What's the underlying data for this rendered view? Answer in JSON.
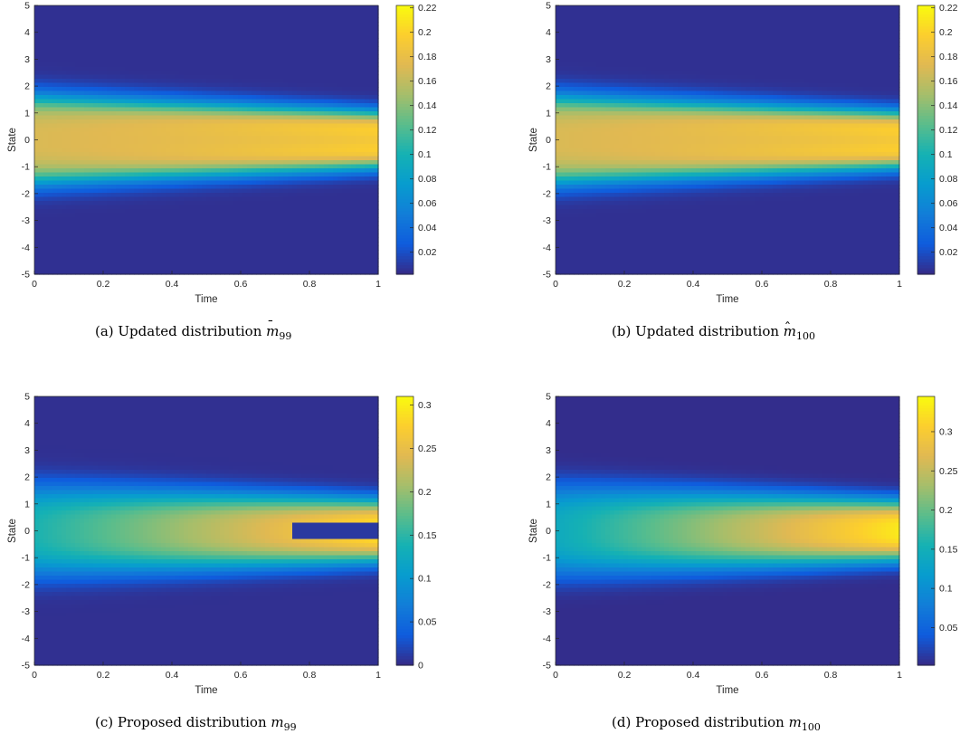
{
  "figure": {
    "panels": [
      {
        "id": "a",
        "caption_prefix": "(a)  Updated distribution",
        "symbol": "m",
        "symbol_mark": "bar",
        "subscript": "99"
      },
      {
        "id": "b",
        "caption_prefix": "(b)  Updated distribution",
        "symbol": "m",
        "symbol_mark": "hat",
        "subscript": "100"
      },
      {
        "id": "c",
        "caption_prefix": "(c)  Proposed distribution",
        "symbol": "m",
        "symbol_mark": "none",
        "subscript": "99"
      },
      {
        "id": "d",
        "caption_prefix": "(d)  Proposed distribution",
        "symbol": "m",
        "symbol_mark": "none",
        "subscript": "100"
      }
    ]
  },
  "chart_data": [
    {
      "type": "heatmap",
      "title": "",
      "xlabel": "Time",
      "ylabel": "State",
      "xlim": [
        0,
        1
      ],
      "ylim": [
        -5,
        5
      ],
      "xticks": [
        "0",
        "0.2",
        "0.4",
        "0.6",
        "0.8",
        "1"
      ],
      "yticks": [
        "-5",
        "-4",
        "-3",
        "-2",
        "-1",
        "0",
        "1",
        "2",
        "3",
        "4",
        "5"
      ],
      "colormap": "parula",
      "colorbar": {
        "range": [
          0.002,
          0.222
        ],
        "ticks": [
          0.02,
          0.04,
          0.06,
          0.08,
          0.1,
          0.12,
          0.14,
          0.16,
          0.18,
          0.2,
          0.22
        ],
        "tick_labels": [
          "0.02",
          "0.04",
          "0.06",
          "0.08",
          "0.1",
          "0.12",
          "0.14",
          "0.16",
          "0.18",
          "0.2",
          "0.22"
        ]
      },
      "field": {
        "center_value_t0": 0.17,
        "center_value_t1": 0.185,
        "band_value_t0": 0.2,
        "band_value_t1": 0.22,
        "band_offset_t0": 1.4,
        "band_offset_t1": 0.8,
        "spread_t0": 1.6,
        "spread_t1": 1.05,
        "edge_value": 0.005
      }
    },
    {
      "type": "heatmap",
      "title": "",
      "xlabel": "Time",
      "ylabel": "State",
      "xlim": [
        0,
        1
      ],
      "ylim": [
        -5,
        5
      ],
      "xticks": [
        "0",
        "0.2",
        "0.4",
        "0.6",
        "0.8",
        "1"
      ],
      "yticks": [
        "-5",
        "-4",
        "-3",
        "-2",
        "-1",
        "0",
        "1",
        "2",
        "3",
        "4",
        "5"
      ],
      "colormap": "parula",
      "colorbar": {
        "range": [
          0.002,
          0.222
        ],
        "ticks": [
          0.02,
          0.04,
          0.06,
          0.08,
          0.1,
          0.12,
          0.14,
          0.16,
          0.18,
          0.2,
          0.22
        ],
        "tick_labels": [
          "0.02",
          "0.04",
          "0.06",
          "0.08",
          "0.1",
          "0.12",
          "0.14",
          "0.16",
          "0.18",
          "0.2",
          "0.22"
        ]
      },
      "field": {
        "center_value_t0": 0.17,
        "center_value_t1": 0.185,
        "band_value_t0": 0.2,
        "band_value_t1": 0.22,
        "band_offset_t0": 1.4,
        "band_offset_t1": 0.8,
        "spread_t0": 1.6,
        "spread_t1": 1.05,
        "edge_value": 0.005
      }
    },
    {
      "type": "heatmap",
      "title": "",
      "xlabel": "Time",
      "ylabel": "State",
      "xlim": [
        0,
        1
      ],
      "ylim": [
        -5,
        5
      ],
      "xticks": [
        "0",
        "0.2",
        "0.4",
        "0.6",
        "0.8",
        "1"
      ],
      "yticks": [
        "-5",
        "-4",
        "-3",
        "-2",
        "-1",
        "0",
        "1",
        "2",
        "3",
        "4",
        "5"
      ],
      "colormap": "parula",
      "colorbar": {
        "range": [
          0,
          0.31
        ],
        "ticks": [
          0,
          0.05,
          0.1,
          0.15,
          0.2,
          0.25,
          0.3
        ],
        "tick_labels": [
          "0",
          "0.05",
          "0.1",
          "0.15",
          "0.2",
          "0.25",
          "0.3"
        ]
      },
      "field": {
        "center_value_t0": 0.14,
        "center_value_t1": 0.29,
        "spread_t0": 1.7,
        "spread_t1": 1.15,
        "edge_value": 0.004,
        "collapse_after_t": 0.75,
        "collapse_halfwidth": 0.35,
        "collapse_value": 0.01
      }
    },
    {
      "type": "heatmap",
      "title": "",
      "xlabel": "Time",
      "ylabel": "State",
      "xlim": [
        0,
        1
      ],
      "ylim": [
        -5,
        5
      ],
      "xticks": [
        "0",
        "0.2",
        "0.4",
        "0.6",
        "0.8",
        "1"
      ],
      "yticks": [
        "-5",
        "-4",
        "-3",
        "-2",
        "-1",
        "0",
        "1",
        "2",
        "3",
        "4",
        "5"
      ],
      "colormap": "parula",
      "colorbar": {
        "range": [
          0.002,
          0.345
        ],
        "ticks": [
          0.05,
          0.1,
          0.15,
          0.2,
          0.25,
          0.3
        ],
        "tick_labels": [
          "0.05",
          "0.1",
          "0.15",
          "0.2",
          "0.25",
          "0.3"
        ]
      },
      "field": {
        "center_value_t0": 0.14,
        "center_value_t1": 0.33,
        "spread_t0": 1.7,
        "spread_t1": 1.12,
        "edge_value": 0.004
      }
    }
  ]
}
